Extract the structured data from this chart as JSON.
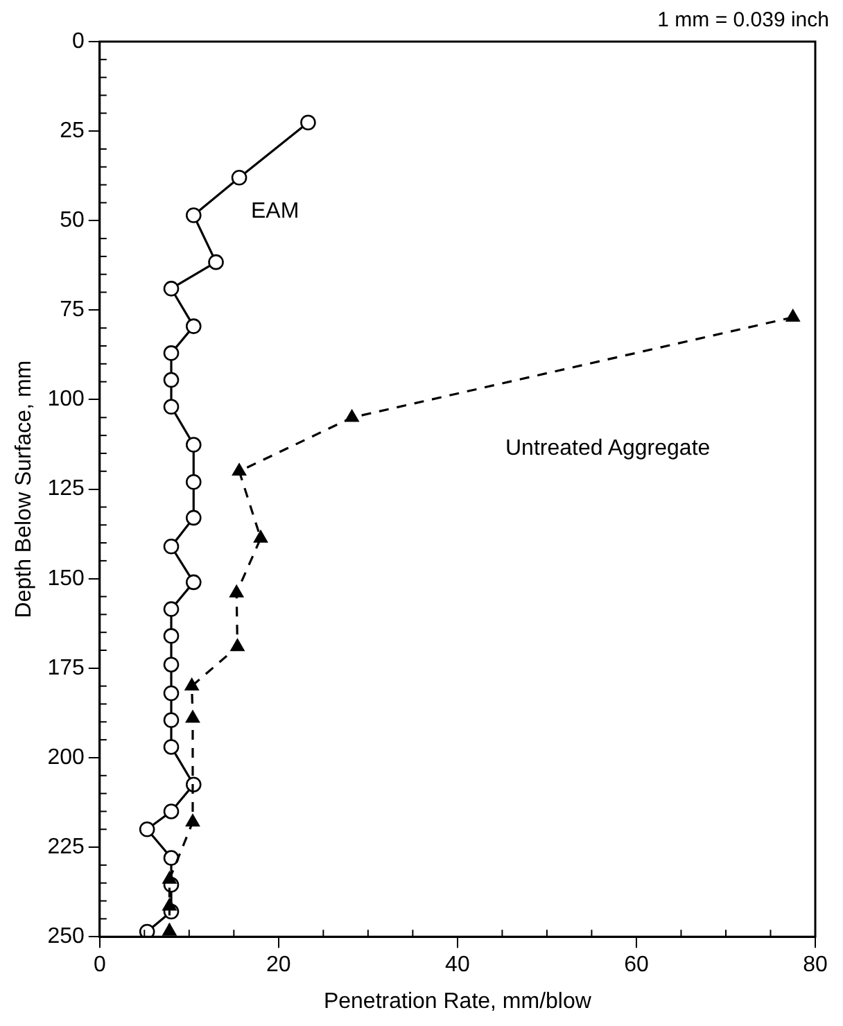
{
  "chart_data": {
    "type": "line",
    "xlabel": "Penetration Rate, mm/blow",
    "ylabel": "Depth Below Surface, mm",
    "annotations": [
      "1 mm = 0.039 inch"
    ],
    "xlim": [
      0,
      80
    ],
    "xticks": [
      0,
      20,
      40,
      60,
      80
    ],
    "ylim": [
      250,
      0
    ],
    "yticks": [
      0,
      25,
      50,
      75,
      100,
      125,
      150,
      175,
      200,
      225,
      250
    ],
    "grid": false,
    "legend": false,
    "series": [
      {
        "name": "EAM",
        "color": "#000000",
        "marker": "circle",
        "line_style": "solid",
        "x": [
          23.3,
          15.6,
          10.5,
          13,
          8,
          10.5,
          8,
          8,
          8,
          10.5,
          10.5,
          10.5,
          8,
          10.5,
          8,
          8,
          8,
          8,
          8,
          8,
          10.5,
          8,
          5.3,
          8,
          8,
          8,
          5.3
        ],
        "values": [
          22.6,
          38,
          48.5,
          61.6,
          69,
          79.5,
          87,
          94.5,
          102,
          112.6,
          123,
          133,
          141,
          151,
          158.5,
          166,
          174,
          182,
          189.5,
          197,
          207.5,
          215,
          220,
          228,
          235.5,
          243,
          248.6
        ]
      },
      {
        "name": "Untreated Aggregate",
        "color": "#000000",
        "marker": "triangle",
        "line_style": "dashed",
        "x": [
          77.5,
          28.2,
          15.6,
          18,
          15.3,
          15.4,
          10.3,
          10.4,
          10.4,
          7.8,
          7.8,
          7.8
        ],
        "values": [
          77,
          105,
          120,
          138.7,
          154,
          169,
          180,
          189,
          218,
          234,
          241.5,
          248.5
        ]
      }
    ]
  }
}
